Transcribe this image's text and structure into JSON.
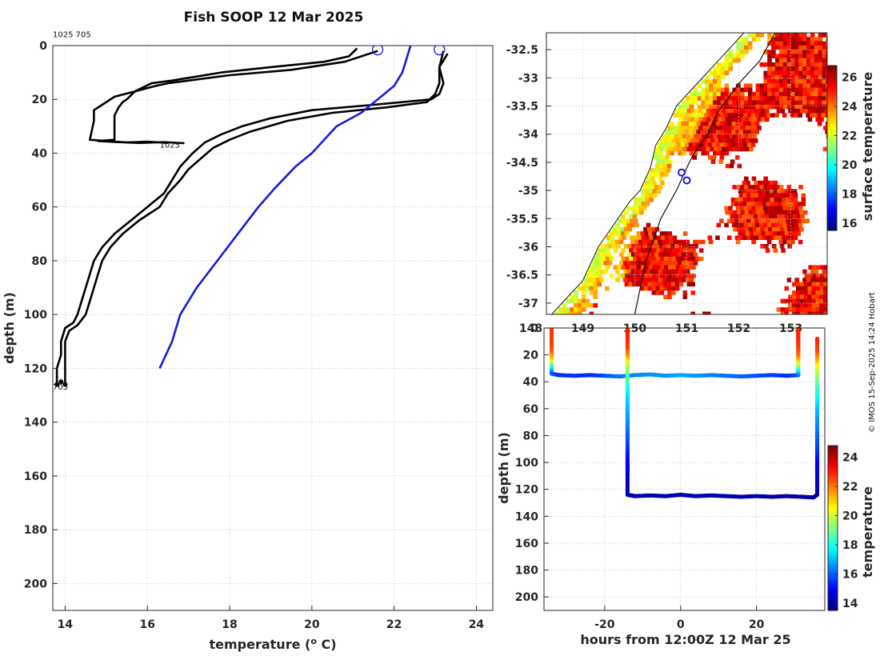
{
  "figure": {
    "title": "Fish SOOP 12 Mar 2025",
    "credit": "© IMOS 15-Sep-2025 14:24 Hobart"
  },
  "chart_data": [
    {
      "type": "line",
      "name": "temperature-depth-profiles",
      "title": "Fish SOOP 12 Mar 2025",
      "xlabel": "temperature (o C)",
      "xlabel_base": "temperature (",
      "xlabel_sup": "o",
      "xlabel_end": " C)",
      "ylabel": "depth (m)",
      "xlim": [
        13.7,
        24.4
      ],
      "ylim": [
        210,
        0
      ],
      "xticks": [
        14,
        16,
        18,
        20,
        22,
        24
      ],
      "yticks": [
        0,
        20,
        40,
        60,
        80,
        100,
        120,
        140,
        160,
        180,
        200
      ],
      "grid": true,
      "annotations": [
        {
          "text": "1025 705",
          "x": 13.7,
          "y": -4
        },
        {
          "text": "1025",
          "x": 16.3,
          "y": 37
        },
        {
          "text": "705",
          "x": 13.7,
          "y": 127
        }
      ],
      "markers": [
        {
          "name": "surface-circle-1",
          "x": 21.6,
          "y": 1.5,
          "color": "#1a1ad6"
        },
        {
          "name": "surface-circle-2",
          "x": 23.1,
          "y": 1.5,
          "color": "#1a1ad6"
        }
      ],
      "series": [
        {
          "name": "profile-1025-a",
          "color": "#000000",
          "x": [
            21.1,
            20.9,
            20.3,
            19.0,
            17.8,
            17.0,
            16.6,
            16.1,
            15.7,
            15.5,
            15.4,
            15.3,
            15.2,
            15.2,
            14.8,
            15.2,
            15.8,
            16.4,
            16.9
          ],
          "y": [
            1,
            4,
            6,
            8,
            10,
            12,
            13,
            14,
            17,
            20,
            21,
            23,
            26,
            35,
            35.5,
            35.8,
            36.2,
            35.9,
            36.3
          ]
        },
        {
          "name": "profile-1025-b",
          "color": "#000000",
          "x": [
            21.6,
            20.8,
            19.5,
            18.0,
            17.0,
            16.5,
            16.2,
            15.7,
            15.2,
            14.9,
            14.7,
            14.7,
            14.6,
            15.0,
            15.5,
            16.0,
            16.5
          ],
          "y": [
            2,
            6,
            9,
            11,
            13,
            14,
            15,
            17,
            19,
            22,
            24,
            28,
            35,
            35.5,
            36,
            35.7,
            36.2
          ]
        },
        {
          "name": "profile-705-a",
          "color": "#000000",
          "x": [
            23.2,
            23.1,
            23.2,
            23.1,
            22.9,
            21.5,
            20.0,
            19.0,
            18.3,
            17.8,
            17.4,
            17.1,
            16.8,
            16.6,
            16.4,
            16.0,
            15.6,
            15.2,
            14.9,
            14.7,
            14.6,
            14.5,
            14.4,
            14.3,
            14.2,
            14.0,
            13.9,
            13.9,
            13.8,
            13.8,
            13.8
          ],
          "y": [
            2,
            8,
            14,
            18,
            20,
            22,
            24,
            27,
            30,
            33,
            36,
            40,
            45,
            50,
            55,
            60,
            65,
            70,
            75,
            80,
            85,
            90,
            95,
            100,
            103,
            105,
            110,
            115,
            120,
            124,
            126
          ]
        },
        {
          "name": "profile-705-b",
          "color": "#000000",
          "x": [
            23.3,
            23.1,
            23.1,
            23.0,
            22.8,
            21.8,
            20.5,
            19.4,
            18.5,
            18.0,
            17.6,
            17.3,
            17.0,
            16.8,
            16.5,
            16.3,
            15.8,
            15.4,
            15.1,
            14.9,
            14.8,
            14.7,
            14.6,
            14.5,
            14.3,
            14.1,
            14.0,
            14.0,
            14.0,
            14.0,
            14.0
          ],
          "y": [
            3,
            8,
            14,
            18,
            21,
            23,
            25,
            28,
            32,
            35,
            38,
            42,
            46,
            50,
            55,
            60,
            65,
            70,
            75,
            80,
            85,
            90,
            95,
            100,
            104,
            106,
            110,
            115,
            120,
            124,
            126
          ]
        },
        {
          "name": "climatology-profile",
          "color": "#1a1ad6",
          "x": [
            22.4,
            22.3,
            22.2,
            22.0,
            21.6,
            21.2,
            20.6,
            20.0,
            19.6,
            19.1,
            18.7,
            18.2,
            17.7,
            17.2,
            16.8,
            16.6,
            16.3
          ],
          "y": [
            0,
            5,
            10,
            15,
            20,
            25,
            30,
            40,
            45,
            53,
            60,
            70,
            80,
            90,
            100,
            110,
            120
          ]
        }
      ]
    },
    {
      "type": "heatmap",
      "name": "surface-temperature-map",
      "title": "",
      "xlabel": "",
      "ylabel": "",
      "xlim": [
        148.3,
        153.7
      ],
      "ylim": [
        -37.2,
        -32.2
      ],
      "xticks": [
        148,
        149,
        150,
        151,
        152,
        153
      ],
      "xtick_labels": [
        "148",
        "149",
        "150",
        "151",
        "152",
        "153"
      ],
      "yticks": [
        -32.5,
        -33,
        -33.5,
        -34,
        -34.5,
        -35,
        -35.5,
        -36,
        -36.5,
        -37
      ],
      "ytick_labels": [
        "-32.5",
        "-33",
        "-33.5",
        "-34",
        "-34.5",
        "-35",
        "-35.5",
        "-36",
        "-36.5",
        "-37"
      ],
      "grid": true,
      "colorbar": {
        "label": "surface temperature",
        "min": 15.5,
        "max": 26.8,
        "ticks": [
          16,
          18,
          20,
          22,
          24,
          26
        ]
      },
      "station_markers": [
        {
          "name": "station-705",
          "lon": 150.9,
          "lat": -34.68
        },
        {
          "name": "station-1025",
          "lon": 151.0,
          "lat": -34.82
        }
      ],
      "coastline": [
        [
          148.4,
          -37.2
        ],
        [
          148.6,
          -37.0
        ],
        [
          149.0,
          -36.6
        ],
        [
          149.3,
          -36.0
        ],
        [
          149.6,
          -35.6
        ],
        [
          149.9,
          -35.2
        ],
        [
          150.1,
          -35.0
        ],
        [
          150.3,
          -34.6
        ],
        [
          150.4,
          -34.2
        ],
        [
          150.6,
          -33.9
        ],
        [
          150.8,
          -33.5
        ],
        [
          151.2,
          -33.1
        ],
        [
          151.5,
          -32.8
        ],
        [
          151.8,
          -32.5
        ],
        [
          152.1,
          -32.2
        ]
      ],
      "shelf_edge": [
        [
          150.0,
          -37.2
        ],
        [
          150.2,
          -36.3
        ],
        [
          150.5,
          -35.5
        ],
        [
          150.8,
          -35.0
        ],
        [
          151.1,
          -34.4
        ],
        [
          151.4,
          -34.0
        ],
        [
          151.6,
          -33.6
        ],
        [
          152.0,
          -33.1
        ],
        [
          152.4,
          -32.7
        ],
        [
          152.7,
          -32.2
        ]
      ]
    },
    {
      "type": "scatter",
      "name": "depth-time-section",
      "title": "",
      "xlabel": "hours from 12:00Z 12 Mar 25",
      "ylabel": "depth (m)",
      "xlim": [
        -36,
        38
      ],
      "ylim": [
        210,
        0
      ],
      "xticks": [
        -20,
        0,
        20
      ],
      "yticks": [
        0,
        20,
        40,
        60,
        80,
        100,
        120,
        140,
        160,
        180,
        200
      ],
      "grid": true,
      "colorbar": {
        "label": "temperature",
        "min": 13.5,
        "max": 24.8,
        "ticks": [
          14,
          16,
          18,
          20,
          22,
          24
        ]
      },
      "traces": [
        {
          "name": "trace-1025",
          "x": [
            -34,
            -34,
            -34,
            -34,
            -34,
            -34,
            -34,
            -32,
            -28,
            -24,
            -20,
            -16,
            -12,
            -8,
            -4,
            0,
            4,
            8,
            12,
            16,
            20,
            24,
            28,
            31,
            31,
            31,
            31,
            31,
            31,
            31
          ],
          "y": [
            0,
            6,
            12,
            18,
            24,
            30,
            34,
            35,
            35.5,
            35,
            35.5,
            36,
            35,
            34.5,
            35.5,
            35,
            35.5,
            35,
            35.5,
            36,
            35.5,
            35,
            35.5,
            35,
            30,
            24,
            18,
            12,
            6,
            0
          ],
          "temp": [
            22.8,
            22.8,
            22.7,
            22.4,
            21.0,
            18.0,
            16.0,
            15.4,
            15.5,
            15.3,
            15.8,
            16.2,
            16.4,
            16.6,
            16.5,
            16.8,
            16.6,
            16.4,
            16.2,
            16.0,
            15.8,
            15.6,
            15.4,
            15.8,
            18.0,
            21.0,
            22.4,
            22.8,
            23.0,
            23.0
          ]
        },
        {
          "name": "trace-705",
          "x": [
            -14,
            -14,
            -14,
            -14,
            -14,
            -14,
            -14,
            -14,
            -14,
            -14,
            -14,
            -14,
            -14,
            -14,
            -12,
            -8,
            -4,
            0,
            4,
            8,
            12,
            16,
            20,
            24,
            28,
            32,
            35,
            36,
            36,
            36,
            36,
            36,
            36,
            36,
            36,
            36,
            36,
            36,
            36,
            36
          ],
          "y": [
            0,
            8,
            16,
            22,
            30,
            40,
            50,
            60,
            70,
            80,
            90,
            100,
            110,
            124,
            125,
            124.5,
            125,
            124,
            125,
            124.5,
            125,
            125.5,
            125,
            125.5,
            125,
            125.5,
            126,
            124,
            110,
            100,
            90,
            80,
            70,
            60,
            50,
            40,
            30,
            22,
            16,
            8
          ],
          "temp": [
            23.2,
            23.0,
            22.6,
            21.5,
            19.5,
            18.5,
            17.5,
            17.0,
            16.5,
            16.0,
            15.5,
            14.8,
            14.3,
            14.0,
            14.0,
            14.0,
            14.0,
            14.1,
            14.0,
            14.0,
            14.0,
            14.0,
            14.0,
            13.9,
            13.9,
            13.9,
            13.9,
            13.9,
            14.3,
            14.8,
            15.5,
            16.0,
            16.5,
            17.0,
            17.8,
            18.8,
            20.0,
            21.6,
            22.6,
            23.0
          ]
        }
      ]
    }
  ]
}
